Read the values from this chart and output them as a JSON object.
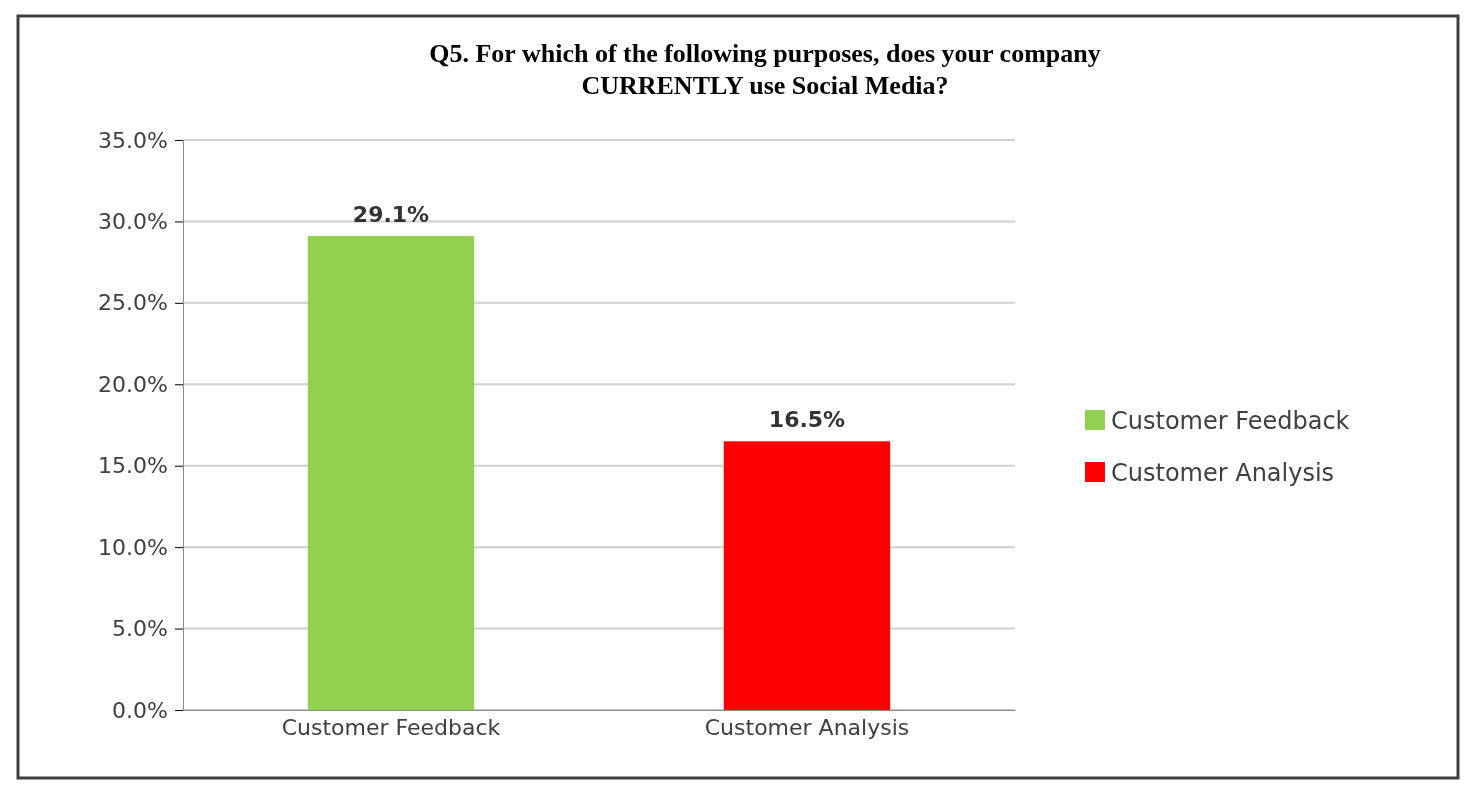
{
  "chart_data": {
    "type": "bar",
    "title": "Q5. For which of the following purposes, does your company CURRENTLY use Social Media?",
    "categories": [
      "Customer Feedback",
      "Customer Analysis"
    ],
    "series": [
      {
        "name": "Customer Feedback",
        "color": "#92d050",
        "values": [
          29.1,
          null
        ],
        "value_labels": [
          "29.1%",
          null
        ]
      },
      {
        "name": "Customer Analysis",
        "color": "#ff0000",
        "values": [
          null,
          16.5
        ],
        "value_labels": [
          null,
          "16.5%"
        ]
      }
    ],
    "ylim": [
      0,
      35
    ],
    "yticks": [
      {
        "value": 0,
        "label": "0.0%"
      },
      {
        "value": 5,
        "label": "5.0%"
      },
      {
        "value": 10,
        "label": "10.0%"
      },
      {
        "value": 15,
        "label": "15.0%"
      },
      {
        "value": 20,
        "label": "20.0%"
      },
      {
        "value": 25,
        "label": "25.0%"
      },
      {
        "value": 30,
        "label": "30.0%"
      },
      {
        "value": 35,
        "label": "35.0%"
      }
    ],
    "grid": "y",
    "legend": "right"
  }
}
